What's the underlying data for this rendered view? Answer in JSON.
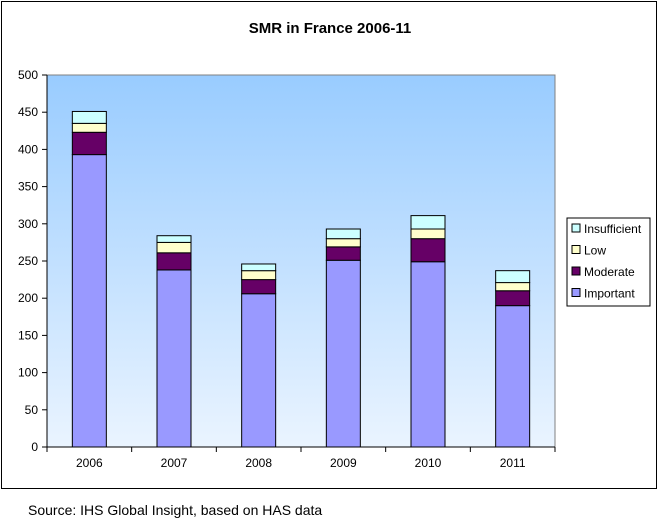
{
  "chart_data": {
    "type": "bar",
    "stacked": true,
    "title": "SMR in France 2006-11",
    "xlabel": "",
    "ylabel": "",
    "categories": [
      "2006",
      "2007",
      "2008",
      "2009",
      "2010",
      "2011"
    ],
    "series": [
      {
        "name": "Important",
        "color": "#9999ff",
        "values": [
          393,
          238,
          206,
          251,
          249,
          190
        ]
      },
      {
        "name": "Moderate",
        "color": "#660066",
        "values": [
          30,
          23,
          19,
          18,
          31,
          20
        ]
      },
      {
        "name": "Low",
        "color": "#ffffcc",
        "values": [
          12,
          14,
          12,
          11,
          13,
          11
        ]
      },
      {
        "name": "Insufficient",
        "color": "#ccffff",
        "values": [
          16,
          9,
          9,
          13,
          18,
          16
        ]
      }
    ],
    "ylim": [
      0,
      500
    ],
    "yticks": [
      0,
      50,
      100,
      150,
      200,
      250,
      300,
      350,
      400,
      450,
      500
    ],
    "legend": {
      "position": "right",
      "order": [
        "Insufficient",
        "Low",
        "Moderate",
        "Important"
      ]
    },
    "plot_background": {
      "top_color": "#99ccff",
      "bottom_color": "#eaf4ff"
    },
    "grid": false
  },
  "source": "Source: IHS Global Insight, based on HAS data"
}
